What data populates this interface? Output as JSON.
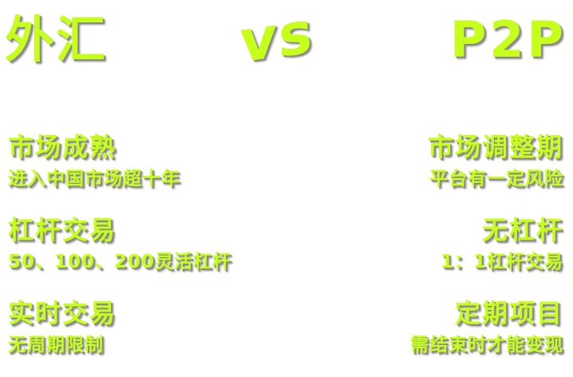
{
  "titles": {
    "left": "外汇",
    "middle": "vs",
    "right": "P2P"
  },
  "left_items": [
    {
      "heading": "市场成熟",
      "desc": "进入中国市场超十年"
    },
    {
      "heading": "杠杆交易",
      "desc": "50、100、200灵活杠杆"
    },
    {
      "heading": "实时交易",
      "desc": "无周期限制"
    }
  ],
  "right_items": [
    {
      "heading": "市场调整期",
      "desc": "平台有一定风险"
    },
    {
      "heading": "无杠杆",
      "desc": "1：1杠杆交易"
    },
    {
      "heading": "定期项目",
      "desc": "需结束时才能变现"
    }
  ],
  "colors": {
    "text": "#c6ff1a",
    "shadow": "#8a8a8a",
    "background": "#ffffff"
  }
}
